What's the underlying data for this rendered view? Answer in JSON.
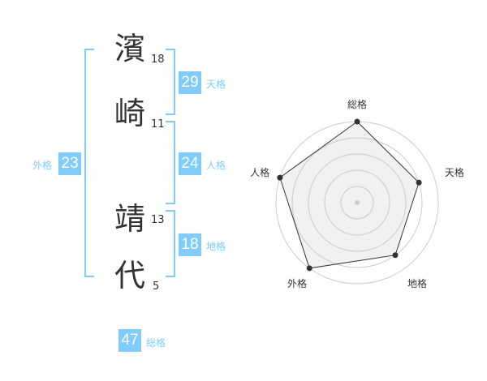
{
  "name": [
    {
      "char": "濱",
      "strokes": "18"
    },
    {
      "char": "崎",
      "strokes": "11"
    },
    {
      "char": "靖",
      "strokes": "13"
    },
    {
      "char": "代",
      "strokes": "5"
    }
  ],
  "kaku": {
    "tenkaku": {
      "label": "天格",
      "value": "29"
    },
    "jinkaku": {
      "label": "人格",
      "value": "24"
    },
    "chikaku": {
      "label": "地格",
      "value": "18"
    },
    "gaikaku": {
      "label": "外格",
      "value": "23"
    },
    "soukaku": {
      "label": "総格",
      "value": "47"
    }
  },
  "accent_color": "#7fcdfd",
  "chart_data": {
    "type": "radar",
    "axes": [
      "総格",
      "天格",
      "地格",
      "外格",
      "人格"
    ],
    "values": [
      5,
      4,
      4,
      5,
      5
    ],
    "range": [
      0,
      5
    ]
  }
}
